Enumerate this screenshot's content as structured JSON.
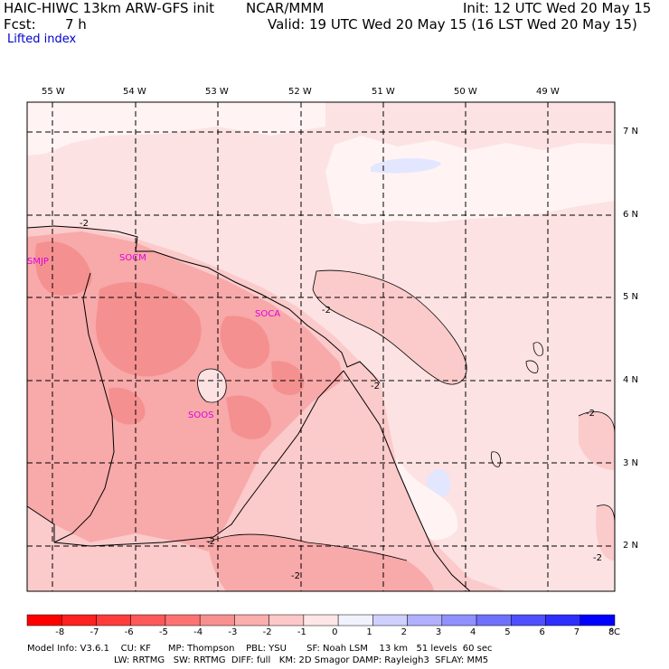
{
  "header": {
    "model": "HAIC-HIWC 13km ARW-GFS init",
    "org": "NCAR/MMM",
    "init": "Init: 12 UTC Wed 20 May 15",
    "fcst_label": "Fcst:",
    "fcst_value": "7 h",
    "valid": "Valid: 19 UTC Wed 20 May 15 (16 LST Wed 20 May 15)",
    "field": "Lifted index"
  },
  "lon_labels": [
    "55 W",
    "54 W",
    "53 W",
    "52 W",
    "51 W",
    "50 W",
    "49 W"
  ],
  "lat_labels": [
    "7 N",
    "6 N",
    "5 N",
    "4 N",
    "3 N",
    "2 N"
  ],
  "stations": [
    "SMJP",
    "SOCM",
    "SOCA",
    "SOOS"
  ],
  "contour_labels": [
    "-2",
    "-2",
    "-2",
    "-2",
    "-2",
    "-2",
    "-2"
  ],
  "colorbar": {
    "ticks": [
      "-8",
      "-7",
      "-6",
      "-5",
      "-4",
      "-3",
      "-2",
      "-1",
      "0",
      "1",
      "2",
      "3",
      "4",
      "5",
      "6",
      "7",
      "8"
    ],
    "unit": "°C",
    "colors": [
      "#ff0000",
      "#ff2020",
      "#ff3c3c",
      "#ff5858",
      "#ff7272",
      "#f99090",
      "#fbaeae",
      "#fcc8c8",
      "#ffe6e6",
      "#f2f2ff",
      "#d0d0ff",
      "#b0b0ff",
      "#9090ff",
      "#7070ff",
      "#4f4fff",
      "#2e2eff",
      "#0000ff"
    ]
  },
  "map_colors": {
    "neg1": "#fce2e2",
    "neg2": "#fbcaca",
    "neg3": "#f8a9a9",
    "neg4": "#f59090",
    "zero": "#fff3f3",
    "pos1": "#e3e6ff"
  },
  "footer": {
    "line1": "Model Info: V3.6.1    CU: KF      MP: Thompson    PBL: YSU       SF: Noah LSM    13 km   51 levels  60 sec",
    "line2": "LW: RRTMG   SW: RRTMG  DIFF: full   KM: 2D Smagor DAMP: Rayleigh3  SFLAY: MM5"
  }
}
